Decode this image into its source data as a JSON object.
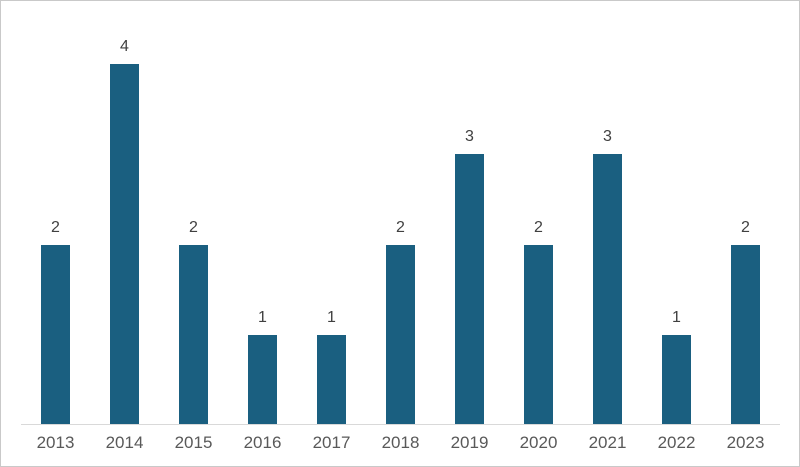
{
  "chart_data": {
    "type": "bar",
    "categories": [
      "2013",
      "2014",
      "2015",
      "2016",
      "2017",
      "2018",
      "2019",
      "2020",
      "2021",
      "2022",
      "2023"
    ],
    "values": [
      2,
      4,
      2,
      1,
      1,
      2,
      3,
      2,
      3,
      1,
      2
    ],
    "title": "",
    "xlabel": "",
    "ylabel": "",
    "ylim": [
      0,
      4.7
    ],
    "grid": false,
    "legend": "none",
    "data_labels_shown": true
  },
  "colors": {
    "bar": "#1a5f80",
    "data_label": "#404040",
    "tick_label": "#595959",
    "axis_line": "#d9d9d9",
    "border": "#c9c9c9",
    "background": "#ffffff"
  }
}
